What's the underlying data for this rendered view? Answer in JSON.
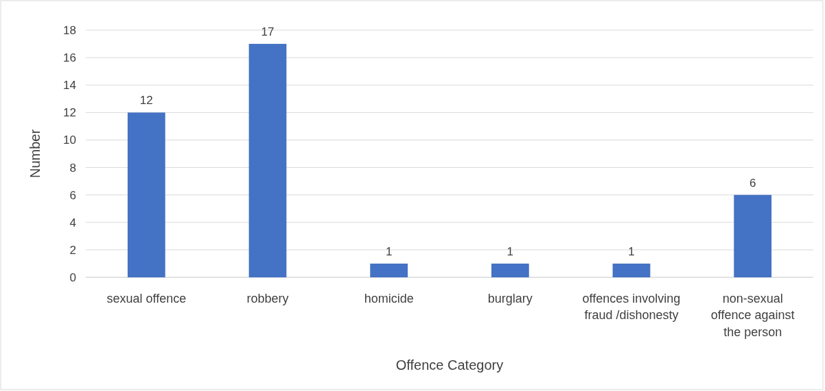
{
  "chart_data": {
    "type": "bar",
    "xlabel": "Offence Category",
    "ylabel": "Number",
    "categories": [
      "sexual offence",
      "robbery",
      "homicide",
      "burglary",
      "offences involving fraud /dishonesty",
      "non-sexual offence against the person"
    ],
    "values": [
      12,
      17,
      1,
      1,
      1,
      6
    ],
    "color": "#4472c4",
    "ylim": [
      0,
      18
    ],
    "yticks": [
      0,
      2,
      4,
      6,
      8,
      10,
      12,
      14,
      16,
      18
    ],
    "grid": "y",
    "data_labels": true
  }
}
